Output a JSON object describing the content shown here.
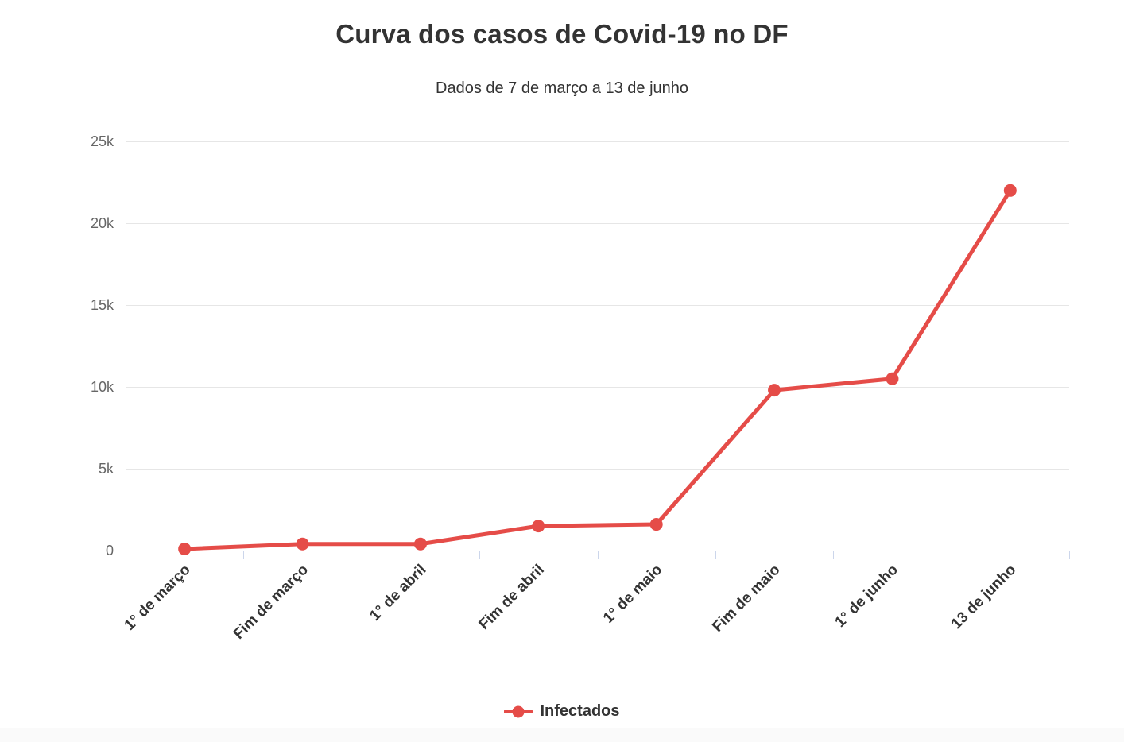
{
  "header": {
    "title": "Curva dos casos de Covid-19 no DF",
    "subtitle": "Dados de 7 de março a 13 de junho"
  },
  "legend": {
    "items": [
      {
        "label": "Infectados",
        "color": "#e54c48"
      }
    ]
  },
  "chart_data": {
    "type": "line",
    "title": "Curva dos casos de Covid-19 no DF",
    "subtitle": "Dados de 7 de março a 13 de junho",
    "categories": [
      "1° de março",
      "Fim de março",
      "1° de abril",
      "Fim de abril",
      "1° de maio",
      "Fim de maio",
      "1° de junho",
      "13 de junho"
    ],
    "series": [
      {
        "name": "Infectados",
        "color": "#e54c48",
        "values": [
          100,
          400,
          400,
          1500,
          1600,
          9800,
          10500,
          22000
        ]
      }
    ],
    "xlabel": "",
    "ylabel": "",
    "ylim": [
      0,
      25000
    ],
    "yticks": [
      0,
      5000,
      10000,
      15000,
      20000,
      25000
    ],
    "ytick_labels": [
      "0",
      "5k",
      "10k",
      "15k",
      "20k",
      "25k"
    ],
    "x_label_rotation": -45,
    "grid": "horizontal-only",
    "legend_position": "bottom",
    "marker": "circle",
    "colors": {
      "series": "#e54c48",
      "grid": "#e6e6e6",
      "axis_line": "#ccd6eb",
      "y_label": "#666666",
      "x_label": "#333333",
      "title": "#333333"
    }
  }
}
